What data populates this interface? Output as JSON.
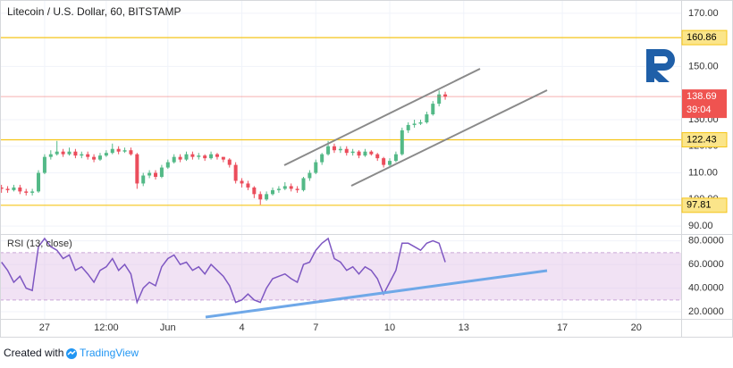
{
  "header": {
    "title": "Litecoin / U.S. Dollar, 60, BITSTAMP"
  },
  "footer": {
    "prefix": "Created with",
    "brand": "TradingView"
  },
  "chart_data": [
    {
      "type": "candlestick",
      "up_color": "#53b987",
      "down_color": "#eb4d5c",
      "x": [
        25.25,
        25.5,
        25.75,
        26,
        26.25,
        26.5,
        26.75,
        27,
        27.25,
        27.5,
        27.75,
        28,
        28.25,
        28.5,
        28.75,
        29,
        29.25,
        29.5,
        29.75,
        30,
        30.25,
        30.5,
        30.75,
        31,
        31.25,
        31.5,
        31.75,
        32,
        32.25,
        32.5,
        32.75,
        33,
        33.25,
        33.5,
        33.75,
        34,
        34.25,
        34.5,
        34.75,
        35,
        35.25,
        35.5,
        35.75,
        36,
        36.25,
        36.5,
        36.75,
        37,
        37.25,
        37.5,
        37.75,
        38,
        38.25,
        38.5,
        38.75,
        39,
        39.25,
        39.5,
        39.75,
        40,
        40.25,
        40.5,
        40.75,
        41,
        41.25,
        41.5,
        41.75,
        42,
        42.25,
        42.5,
        42.75,
        43,
        43.25
      ],
      "open": [
        104.5,
        104,
        103.5,
        104.5,
        103,
        102.5,
        103,
        110,
        116,
        117,
        118,
        117,
        118,
        116.5,
        117,
        116,
        115,
        116.5,
        117.5,
        119,
        118,
        118.5,
        117,
        106,
        109,
        110,
        108.5,
        112,
        114,
        116,
        115,
        117,
        116,
        116.5,
        115.5,
        117,
        116,
        115,
        113,
        107,
        106,
        104.5,
        102,
        100,
        102,
        103.5,
        104,
        105,
        104,
        103.5,
        108,
        110,
        114,
        117,
        120,
        118.5,
        119,
        117.5,
        118,
        116.5,
        118,
        117,
        115.5,
        113,
        114.5,
        117,
        126,
        128,
        128.5,
        129,
        132,
        136,
        139.5
      ],
      "high": [
        105.5,
        105,
        105.5,
        105.5,
        104,
        104,
        111,
        117,
        118.5,
        122,
        119,
        119.5,
        119,
        118,
        118,
        117,
        117.5,
        118.5,
        121,
        120,
        119.5,
        119.5,
        117.5,
        110,
        111,
        111,
        113,
        115,
        117,
        117,
        118,
        118,
        117.5,
        117,
        118,
        117.5,
        116,
        115.5,
        114,
        108,
        107,
        105,
        103,
        103,
        104.5,
        105,
        106.5,
        106,
        105,
        108.5,
        111,
        115,
        117.5,
        122,
        121,
        120,
        120,
        119,
        118.5,
        119,
        118.5,
        117.5,
        116,
        115.5,
        118,
        127,
        129,
        130,
        130,
        133,
        137,
        141,
        140.5
      ],
      "low": [
        102.5,
        102.5,
        103,
        102,
        101.5,
        101.5,
        102.5,
        109.5,
        115,
        116.5,
        116,
        116.5,
        115.5,
        115.5,
        115,
        114,
        114.5,
        116,
        117,
        117,
        117.5,
        116.5,
        104,
        105,
        108,
        107.5,
        108,
        111.5,
        113.5,
        114,
        114.5,
        115,
        115,
        114.5,
        115,
        115,
        114,
        112,
        106,
        104.5,
        103.5,
        100.5,
        98,
        99.5,
        101.5,
        102.5,
        103.5,
        103,
        102.5,
        103,
        107,
        109.5,
        113,
        116.5,
        117.5,
        117.5,
        116.5,
        116.5,
        115.5,
        116,
        116.5,
        114.5,
        112,
        112.5,
        114,
        116.5,
        125,
        127,
        128,
        128.5,
        131.5,
        135,
        137.5
      ],
      "close": [
        104,
        103.5,
        104.5,
        103,
        102.5,
        103,
        110,
        116,
        117,
        118,
        117,
        118,
        116.5,
        117,
        116,
        115,
        116.5,
        117.5,
        119,
        118,
        118.5,
        117,
        106,
        109,
        110,
        108.5,
        112,
        114,
        116,
        115,
        117,
        116,
        116.5,
        115.5,
        117,
        116,
        115,
        113,
        107,
        106,
        104.5,
        102,
        100,
        102,
        103.5,
        104,
        105,
        104,
        103.5,
        108,
        110,
        114,
        117,
        120,
        118.5,
        119,
        117.5,
        118,
        116.5,
        118,
        117,
        115.5,
        113,
        114.5,
        117,
        126,
        128,
        128.5,
        129,
        132,
        136,
        139.5,
        138.69
      ],
      "countdown": "39:04",
      "last_color": "#ef5350",
      "hlines": [
        160.86,
        122.43,
        97.81
      ],
      "hline_color": "#f5c518",
      "xlim": [
        25.19,
        52.82
      ],
      "xticks": [
        27,
        {
          "value": 29.5,
          "label": "12:00"
        },
        {
          "value": 32,
          "label": "Jun"
        },
        {
          "value": 35,
          "label": "4"
        },
        {
          "value": 38,
          "label": "7"
        },
        {
          "value": 41,
          "label": "10"
        },
        {
          "value": 44,
          "label": "13"
        },
        {
          "value": 48,
          "label": "17"
        },
        {
          "value": 51,
          "label": "20"
        }
      ],
      "ylim": [
        87,
        175
      ],
      "yticks": [
        {
          "value": 170,
          "label": "170.00"
        },
        {
          "value": 150,
          "label": "150.00"
        },
        {
          "value": 130,
          "label": "130.00"
        },
        {
          "value": 120,
          "label": "120.00"
        },
        {
          "value": 110,
          "label": "110.00"
        },
        {
          "value": 100,
          "label": "100.00"
        },
        {
          "value": 90,
          "label": "90.00"
        }
      ],
      "grid": true
    },
    {
      "type": "line",
      "title": "RSI (13, close)",
      "color": "#7e57c2",
      "values": [
        62,
        55,
        45,
        50,
        40,
        38,
        75,
        82,
        75,
        72,
        65,
        68,
        55,
        58,
        52,
        45,
        55,
        58,
        65,
        55,
        60,
        52,
        28,
        40,
        45,
        42,
        58,
        65,
        68,
        60,
        62,
        55,
        58,
        52,
        60,
        55,
        50,
        42,
        28,
        30,
        35,
        30,
        28,
        40,
        48,
        50,
        52,
        48,
        45,
        60,
        62,
        72,
        78,
        82,
        65,
        62,
        55,
        58,
        52,
        58,
        55,
        48,
        35,
        45,
        55,
        78,
        78,
        75,
        72,
        78,
        80,
        78,
        62
      ],
      "band": [
        30,
        70
      ],
      "band_color": "#e1bee7",
      "ylim": [
        14,
        85
      ],
      "yticks": [
        {
          "value": 80,
          "label": "80.0000"
        },
        {
          "value": 60,
          "label": "60.0000"
        },
        {
          "value": 40,
          "label": "40.0000"
        },
        {
          "value": 20,
          "label": "20.0000"
        }
      ],
      "grid": true
    }
  ]
}
